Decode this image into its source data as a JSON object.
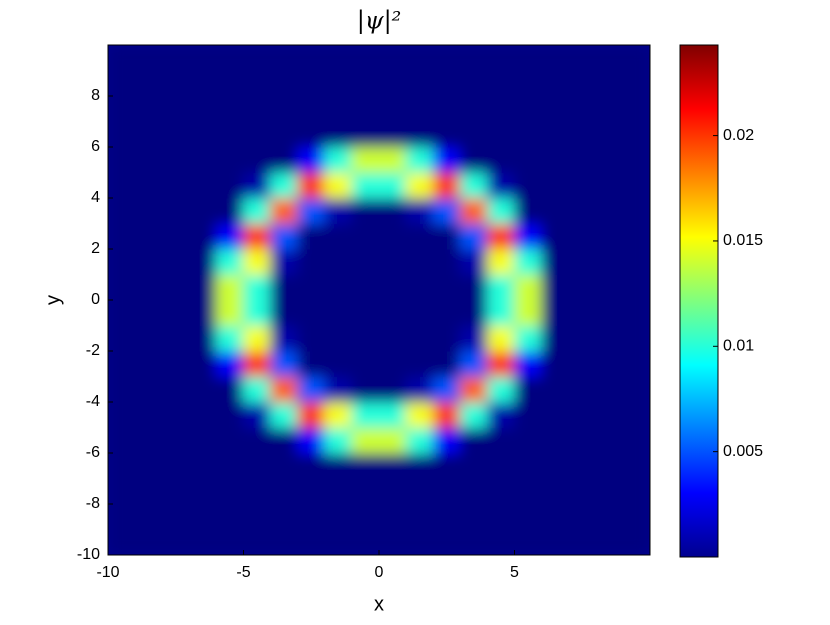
{
  "chart_data": {
    "type": "heatmap",
    "title": "|ψ|²",
    "x_label": "x",
    "y_label": "y",
    "colormap": "jet",
    "x": [
      -9.5,
      -8.5,
      -7.5,
      -6.5,
      -5.5,
      -4.5,
      -3.5,
      -2.5,
      -1.5,
      -0.5,
      0.5,
      1.5,
      2.5,
      3.5,
      4.5,
      5.5,
      6.5,
      7.5,
      8.5,
      9.5
    ],
    "y": [
      -9.5,
      -8.5,
      -7.5,
      -6.5,
      -5.5,
      -4.5,
      -3.5,
      -2.5,
      -1.5,
      -0.5,
      0.5,
      1.5,
      2.5,
      3.5,
      4.5,
      5.5,
      6.5,
      7.5,
      8.5,
      9.5
    ],
    "z": [
      [
        0,
        0,
        0,
        0,
        0,
        0,
        0,
        0,
        0,
        0,
        0,
        0,
        0,
        0,
        0,
        0,
        0,
        0,
        0,
        0
      ],
      [
        0,
        0,
        0,
        0,
        0,
        0,
        0,
        0,
        0,
        0,
        0,
        0,
        0,
        0,
        0,
        0,
        0,
        0,
        0,
        0
      ],
      [
        0,
        0,
        0,
        0,
        0,
        0,
        0,
        0,
        0,
        0,
        0,
        0,
        0,
        0,
        0,
        0,
        0,
        0,
        0,
        0
      ],
      [
        0,
        0,
        0,
        0,
        0,
        0,
        0,
        0,
        0,
        0,
        0,
        0,
        0,
        0,
        0,
        0,
        0,
        0,
        0,
        0
      ],
      [
        0,
        0,
        0,
        0,
        0,
        0,
        0,
        0.003,
        0.01,
        0.014,
        0.014,
        0.01,
        0.003,
        0,
        0,
        0,
        0,
        0,
        0,
        0
      ],
      [
        0,
        0,
        0,
        0,
        0,
        0.001,
        0.01,
        0.02,
        0.015,
        0.01,
        0.01,
        0.015,
        0.02,
        0.01,
        0.001,
        0,
        0,
        0,
        0,
        0
      ],
      [
        0,
        0,
        0,
        0,
        0,
        0.01,
        0.019,
        0.005,
        0.001,
        0,
        0,
        0.001,
        0.005,
        0.019,
        0.01,
        0,
        0,
        0,
        0,
        0
      ],
      [
        0,
        0,
        0,
        0,
        0.003,
        0.02,
        0.005,
        0,
        0,
        0,
        0,
        0,
        0,
        0.005,
        0.02,
        0.003,
        0,
        0,
        0,
        0
      ],
      [
        0,
        0,
        0,
        0,
        0.01,
        0.015,
        0.001,
        0,
        0,
        0,
        0,
        0,
        0,
        0.001,
        0.015,
        0.01,
        0,
        0,
        0,
        0
      ],
      [
        0,
        0,
        0,
        0,
        0.014,
        0.01,
        0,
        0,
        0,
        0,
        0,
        0,
        0,
        0,
        0.01,
        0.014,
        0,
        0,
        0,
        0
      ],
      [
        0,
        0,
        0,
        0,
        0.014,
        0.01,
        0,
        0,
        0,
        0,
        0,
        0,
        0,
        0,
        0.01,
        0.014,
        0,
        0,
        0,
        0
      ],
      [
        0,
        0,
        0,
        0,
        0.01,
        0.015,
        0.001,
        0,
        0,
        0,
        0,
        0,
        0,
        0.001,
        0.015,
        0.01,
        0,
        0,
        0,
        0
      ],
      [
        0,
        0,
        0,
        0,
        0.003,
        0.02,
        0.005,
        0,
        0,
        0,
        0,
        0,
        0,
        0.005,
        0.02,
        0.003,
        0,
        0,
        0,
        0
      ],
      [
        0,
        0,
        0,
        0,
        0,
        0.01,
        0.019,
        0.005,
        0.001,
        0,
        0,
        0.001,
        0.005,
        0.019,
        0.01,
        0,
        0,
        0,
        0,
        0
      ],
      [
        0,
        0,
        0,
        0,
        0,
        0.001,
        0.01,
        0.02,
        0.015,
        0.01,
        0.01,
        0.015,
        0.02,
        0.01,
        0.001,
        0,
        0,
        0,
        0,
        0
      ],
      [
        0,
        0,
        0,
        0,
        0,
        0,
        0,
        0.003,
        0.01,
        0.014,
        0.014,
        0.01,
        0.003,
        0,
        0,
        0,
        0,
        0,
        0,
        0
      ],
      [
        0,
        0,
        0,
        0,
        0,
        0,
        0,
        0,
        0,
        0,
        0,
        0,
        0,
        0,
        0,
        0,
        0,
        0,
        0,
        0
      ],
      [
        0,
        0,
        0,
        0,
        0,
        0,
        0,
        0,
        0,
        0,
        0,
        0,
        0,
        0,
        0,
        0,
        0,
        0,
        0,
        0
      ],
      [
        0,
        0,
        0,
        0,
        0,
        0,
        0,
        0,
        0,
        0,
        0,
        0,
        0,
        0,
        0,
        0,
        0,
        0,
        0,
        0
      ],
      [
        0,
        0,
        0,
        0,
        0,
        0,
        0,
        0,
        0,
        0,
        0,
        0,
        0,
        0,
        0,
        0,
        0,
        0,
        0,
        0
      ]
    ],
    "xlim": [
      -10,
      10
    ],
    "xticks": [
      -10,
      -5,
      0,
      5
    ],
    "ylim": [
      -10,
      10
    ],
    "yticks": [
      -10,
      -8,
      -6,
      -4,
      -2,
      0,
      2,
      4,
      6,
      8
    ],
    "clim": [
      0,
      0.0243
    ],
    "cticks": [
      0.005,
      0.01,
      0.015,
      0.02
    ]
  }
}
